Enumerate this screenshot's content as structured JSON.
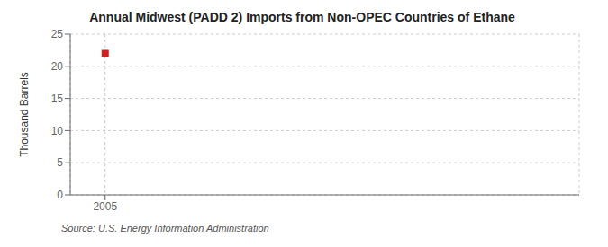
{
  "chart_data": {
    "type": "scatter",
    "title": "Annual Midwest (PADD 2) Imports from Non-OPEC Countries of Ethane",
    "y_label": "Thousand Barrels",
    "annotations": [
      "Source: U.S. Energy Information Administration"
    ],
    "x": [
      2005
    ],
    "values": [
      22
    ],
    "color": "#cc2222",
    "marker": "square",
    "xlim": [
      2004.3,
      2014.5
    ],
    "xticks": [
      2005
    ],
    "ylim": [
      0,
      25
    ],
    "yticks": [
      0,
      5,
      10,
      15,
      20,
      25
    ],
    "grid": true
  }
}
